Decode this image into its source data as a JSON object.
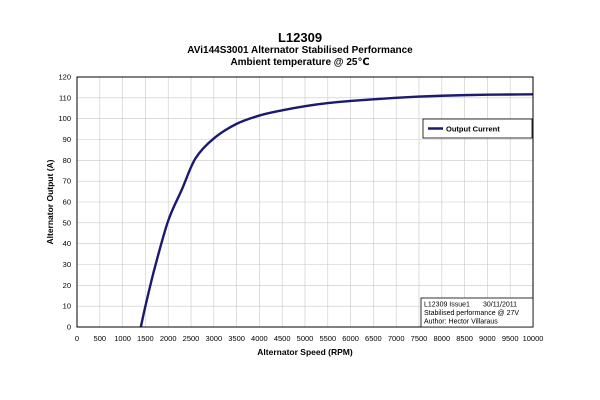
{
  "chart_data": {
    "type": "line",
    "title": "L12309",
    "subtitle": "AVi144S3001 Alternator Stabilised Performance",
    "subtitle2": "Ambient temperature @ 25℃",
    "xlabel": "Alternator Speed (RPM)",
    "ylabel": "Alternator Output (A)",
    "xlim": [
      0,
      10000
    ],
    "ylim": [
      0,
      120
    ],
    "xticks": [
      "0",
      "500",
      "1000",
      "1500",
      "2000",
      "2500",
      "3000",
      "3500",
      "4000",
      "4500",
      "5000",
      "5500",
      "6000",
      "6500",
      "7000",
      "7500",
      "8000",
      "8500",
      "9000",
      "9500",
      "10000"
    ],
    "yticks": [
      "0",
      "10",
      "20",
      "30",
      "40",
      "50",
      "60",
      "70",
      "80",
      "90",
      "100",
      "110",
      "120"
    ],
    "grid": true,
    "legend_position": "right",
    "series": [
      {
        "name": "Output Current",
        "color": "#1a1a6e",
        "x": [
          1400,
          1500,
          1700,
          2000,
          2300,
          2600,
          3000,
          3500,
          4000,
          4500,
          5000,
          5500,
          6000,
          6500,
          7000,
          7500,
          8000,
          8500,
          9000,
          9500,
          10000
        ],
        "y": [
          0,
          10,
          28,
          51,
          66,
          81,
          90.5,
          97.5,
          101.5,
          104,
          106,
          107.5,
          108.5,
          109.3,
          110,
          110.6,
          111,
          111.3,
          111.5,
          111.6,
          111.7
        ]
      }
    ],
    "info_box": {
      "line1_left": "L12309 Issue1",
      "line1_right": "30/11/2011",
      "line2": "Stabilised performance @ 27V",
      "line3": "Author: Hector Villaraus"
    }
  }
}
